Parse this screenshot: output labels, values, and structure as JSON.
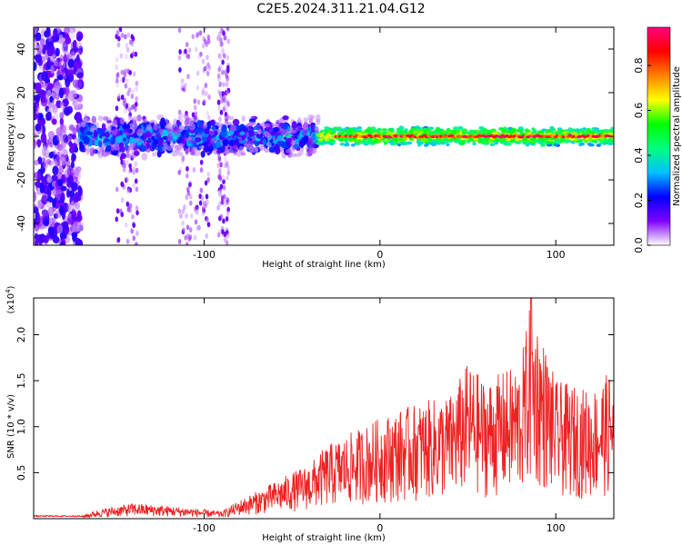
{
  "title": "C2E5.2024.311.21.04.G12",
  "chart_data": [
    {
      "type": "heatmap",
      "xlabel": "Height of straight line (km)",
      "ylabel": "Frequency (Hz)",
      "xlim": [
        -197,
        133
      ],
      "ylim": [
        -50,
        50
      ],
      "x_ticks": [
        -100,
        0,
        100
      ],
      "y_ticks": [
        -40,
        -20,
        0,
        20,
        40
      ],
      "colorbar": {
        "label": "Normalized spectral amplitude",
        "range": [
          0,
          0.97
        ],
        "ticks": [
          0.0,
          0.2,
          0.4,
          0.6,
          0.8
        ],
        "tick_labels": [
          "0.0",
          "0.2",
          "0.4",
          "0.6",
          "0.8"
        ],
        "colormap": [
          "#ffffff",
          "#8000ff",
          "#0000ff",
          "#00c0ff",
          "#00ff80",
          "#00ff00",
          "#ffff00",
          "#ff8000",
          "#ff0000",
          "#ff0080"
        ]
      },
      "bands": [
        {
          "x_range": [
            -197,
            -170
          ],
          "freq_range": [
            -50,
            50
          ],
          "amplitude": 0.1
        },
        {
          "x_range": [
            -170,
            -35
          ],
          "freq_range": [
            -8,
            8
          ],
          "amplitude": 0.25
        },
        {
          "x_range": [
            -35,
            133
          ],
          "freq_range": [
            -4,
            4
          ],
          "amplitude": 0.55
        },
        {
          "x_range": [
            -25,
            133
          ],
          "freq_range": [
            -1,
            1
          ],
          "amplitude": 0.9
        }
      ]
    },
    {
      "type": "line",
      "xlabel": "Height of straight line (km)",
      "ylabel": "SNR (10 * v/v)",
      "y_multiplier": "(x10",
      "y_multiplier_exp": "4",
      "y_multiplier_close": ")",
      "xlim": [
        -197,
        133
      ],
      "ylim": [
        0,
        2.4
      ],
      "x_ticks": [
        -100,
        0,
        100
      ],
      "y_ticks": [
        0.5,
        1.0,
        1.5,
        2.0
      ],
      "y_tick_labels": [
        "0.5",
        "1.0",
        "1.5",
        "2.0"
      ],
      "color": "#ee2222",
      "envelope": {
        "x": [
          -197,
          -170,
          -160,
          -140,
          -110,
          -90,
          -80,
          -70,
          -60,
          -50,
          -40,
          -30,
          -20,
          -10,
          0,
          20,
          40,
          50,
          60,
          80,
          86,
          100,
          120,
          133
        ],
        "y_max": [
          0.03,
          0.03,
          0.1,
          0.17,
          0.12,
          0.08,
          0.2,
          0.3,
          0.4,
          0.5,
          0.6,
          0.8,
          0.9,
          1.0,
          1.1,
          1.25,
          1.35,
          1.7,
          1.5,
          1.7,
          2.4,
          1.5,
          1.4,
          1.65
        ]
      }
    }
  ]
}
